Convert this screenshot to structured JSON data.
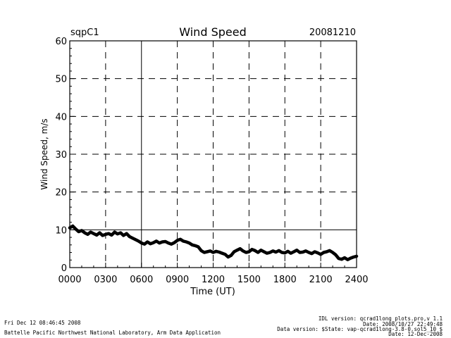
{
  "header": {
    "site": "sqpC1",
    "title": "Wind Speed",
    "date": "20081210"
  },
  "chart_data": {
    "type": "line",
    "title": "Wind Speed",
    "xlabel": "Time (UT)",
    "ylabel": "Wind Speed, m/s",
    "xlim": [
      0,
      24
    ],
    "ylim": [
      0,
      60
    ],
    "x_tick_labels": [
      "0000",
      "0300",
      "0600",
      "0900",
      "1200",
      "1500",
      "1800",
      "2100",
      "2400"
    ],
    "y_tick_labels": [
      "0",
      "10",
      "20",
      "30",
      "40",
      "50",
      "60"
    ],
    "x_ticks": [
      0,
      3,
      6,
      9,
      12,
      15,
      18,
      21,
      24
    ],
    "y_ticks": [
      0,
      10,
      20,
      30,
      40,
      50,
      60
    ],
    "reference_line_y": 10,
    "grid": true,
    "series": [
      {
        "x": [
          0.0,
          0.25,
          0.5,
          0.75,
          1.0,
          1.25,
          1.5,
          1.75,
          2.0,
          2.25,
          2.5,
          2.75,
          3.0,
          3.25,
          3.5,
          3.75,
          4.0,
          4.25,
          4.5,
          4.75,
          5.0,
          5.25,
          5.5,
          5.75,
          6.0,
          6.25,
          6.5,
          6.75,
          7.0,
          7.25,
          7.5,
          7.75,
          8.0,
          8.25,
          8.5,
          8.75,
          9.0,
          9.25,
          9.5,
          9.75,
          10.0,
          10.25,
          10.5,
          10.75,
          11.0,
          11.25,
          11.5,
          11.75,
          12.0,
          12.25,
          12.5,
          12.75,
          13.0,
          13.25,
          13.5,
          13.75,
          14.0,
          14.25,
          14.5,
          14.75,
          15.0,
          15.25,
          15.5,
          15.75,
          16.0,
          16.25,
          16.5,
          16.75,
          17.0,
          17.25,
          17.5,
          17.75,
          18.0,
          18.25,
          18.5,
          18.75,
          19.0,
          19.25,
          19.5,
          19.75,
          20.0,
          20.25,
          20.5,
          20.75,
          21.0,
          21.25,
          21.5,
          21.75,
          22.0,
          22.25,
          22.5,
          22.75,
          23.0,
          23.25,
          23.5,
          23.75,
          24.0
        ],
        "y": [
          10.5,
          11.0,
          10.2,
          9.5,
          9.8,
          9.2,
          8.8,
          9.4,
          9.0,
          8.6,
          9.2,
          8.5,
          8.8,
          9.0,
          8.6,
          9.4,
          8.9,
          9.2,
          8.5,
          9.0,
          8.2,
          7.8,
          7.4,
          7.0,
          6.5,
          6.2,
          6.8,
          6.3,
          6.6,
          7.0,
          6.5,
          6.8,
          6.9,
          6.5,
          6.2,
          6.6,
          7.2,
          7.5,
          7.0,
          6.8,
          6.5,
          6.0,
          5.8,
          5.5,
          4.5,
          4.0,
          4.2,
          4.4,
          4.0,
          4.3,
          4.1,
          3.8,
          3.5,
          2.8,
          3.2,
          4.2,
          4.6,
          5.0,
          4.4,
          4.0,
          4.2,
          4.8,
          4.5,
          4.0,
          4.6,
          4.2,
          3.8,
          4.0,
          4.4,
          4.1,
          4.5,
          4.0,
          3.9,
          4.3,
          3.8,
          4.2,
          4.6,
          4.0,
          4.1,
          4.4,
          4.0,
          3.7,
          4.2,
          3.9,
          3.5,
          4.0,
          4.2,
          4.5,
          4.0,
          3.4,
          2.4,
          2.2,
          2.6,
          2.1,
          2.5,
          2.8,
          3.0
        ]
      }
    ]
  },
  "footer": {
    "timestamp": "Fri Dec 12 08:46:45 2008",
    "org": "Battelle Pacific Northwest National Laboratory, Arm Data Application",
    "idl_version": "IDL version: qcrad1long_plots.pro,v 1.1",
    "idl_date": "Date: 2008/10/27 22:49:48",
    "data_version": "Data version: $State: vap-qcrad1long-3.8-0.sol5_10 $",
    "data_date": "Date: 12-Dec-2008"
  }
}
